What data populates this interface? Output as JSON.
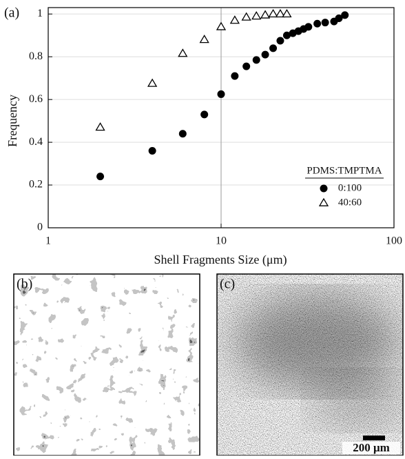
{
  "chart_data": {
    "type": "scatter",
    "panel_label": "(a)",
    "x_label": "Shell Fragments Size (μm)",
    "y_label": "Frequency",
    "x": [
      2,
      4,
      6,
      8,
      10,
      12,
      14,
      16,
      18,
      20,
      22,
      24,
      26,
      28,
      30,
      32,
      36,
      40,
      45,
      48,
      52
    ],
    "series": [
      {
        "name": "0:100",
        "color": "#000000",
        "marker": "filled-circle",
        "values": [
          0.24,
          0.36,
          0.44,
          0.53,
          0.625,
          0.71,
          0.755,
          0.785,
          0.81,
          0.84,
          0.875,
          0.9,
          0.91,
          0.92,
          0.93,
          0.94,
          0.955,
          0.96,
          0.965,
          0.98,
          0.995
        ]
      },
      {
        "name": "40:60",
        "color": "#000000",
        "marker": "open-triangle",
        "values": [
          0.47,
          0.675,
          0.815,
          0.88,
          0.94,
          0.97,
          0.985,
          0.99,
          0.995,
          1,
          1,
          1,
          null,
          null,
          null,
          null,
          null,
          null,
          null,
          null,
          null
        ]
      }
    ],
    "legend_title": "PDMS:TMPTMA",
    "legend": "lower right",
    "xlog": true,
    "xlim": [
      1,
      100
    ],
    "xticks": [
      1,
      10,
      100
    ],
    "ylim": [
      0,
      1.03
    ],
    "yticks": [
      0,
      0.2,
      0.4,
      0.6,
      0.8,
      1
    ],
    "grid": true
  },
  "panels": [
    {
      "label": "(b)"
    },
    {
      "label": "(c)",
      "scale_bar": "200 μm"
    }
  ]
}
